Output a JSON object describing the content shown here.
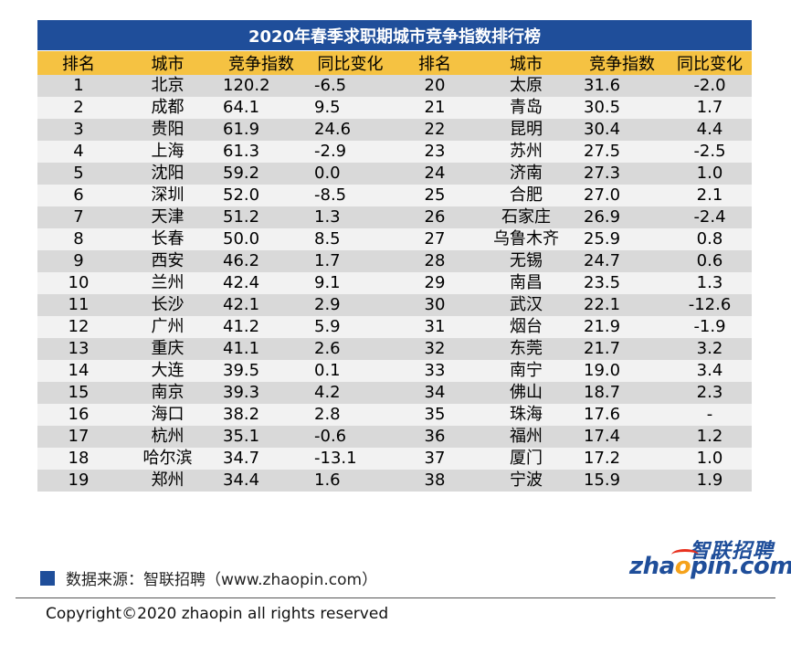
{
  "title": "2020年春季求职期城市竞争指数排行榜",
  "headers": [
    "排名",
    "城市",
    "竞争指数",
    "同比变化",
    "排名",
    "城市",
    "竞争指数",
    "同比变化"
  ],
  "rows": [
    {
      "l": [
        "1",
        "北京",
        "120.2",
        "-6.5"
      ],
      "r": [
        "20",
        "太原",
        "31.6",
        "-2.0"
      ]
    },
    {
      "l": [
        "2",
        "成都",
        "64.1",
        "9.5"
      ],
      "r": [
        "21",
        "青岛",
        "30.5",
        "1.7"
      ]
    },
    {
      "l": [
        "3",
        "贵阳",
        "61.9",
        "24.6"
      ],
      "r": [
        "22",
        "昆明",
        "30.4",
        "4.4"
      ]
    },
    {
      "l": [
        "4",
        "上海",
        "61.3",
        "-2.9"
      ],
      "r": [
        "23",
        "苏州",
        "27.5",
        "-2.5"
      ]
    },
    {
      "l": [
        "5",
        "沈阳",
        "59.2",
        "0.0"
      ],
      "r": [
        "24",
        "济南",
        "27.3",
        "1.0"
      ]
    },
    {
      "l": [
        "6",
        "深圳",
        "52.0",
        "-8.5"
      ],
      "r": [
        "25",
        "合肥",
        "27.0",
        "2.1"
      ]
    },
    {
      "l": [
        "7",
        "天津",
        "51.2",
        "1.3"
      ],
      "r": [
        "26",
        "石家庄",
        "26.9",
        "-2.4"
      ]
    },
    {
      "l": [
        "8",
        "长春",
        "50.0",
        "8.5"
      ],
      "r": [
        "27",
        "乌鲁木齐",
        "25.9",
        "0.8"
      ]
    },
    {
      "l": [
        "9",
        "西安",
        "46.2",
        "1.7"
      ],
      "r": [
        "28",
        "无锡",
        "24.7",
        "0.6"
      ]
    },
    {
      "l": [
        "10",
        "兰州",
        "42.4",
        "9.1"
      ],
      "r": [
        "29",
        "南昌",
        "23.5",
        "1.3"
      ]
    },
    {
      "l": [
        "11",
        "长沙",
        "42.1",
        "2.9"
      ],
      "r": [
        "30",
        "武汉",
        "22.1",
        "-12.6"
      ]
    },
    {
      "l": [
        "12",
        "广州",
        "41.2",
        "5.9"
      ],
      "r": [
        "31",
        "烟台",
        "21.9",
        "-1.9"
      ]
    },
    {
      "l": [
        "13",
        "重庆",
        "41.1",
        "2.6"
      ],
      "r": [
        "32",
        "东莞",
        "21.7",
        "3.2"
      ]
    },
    {
      "l": [
        "14",
        "大连",
        "39.5",
        "0.1"
      ],
      "r": [
        "33",
        "南宁",
        "19.0",
        "3.4"
      ]
    },
    {
      "l": [
        "15",
        "南京",
        "39.3",
        "4.2"
      ],
      "r": [
        "34",
        "佛山",
        "18.7",
        "2.3"
      ]
    },
    {
      "l": [
        "16",
        "海口",
        "38.2",
        "2.8"
      ],
      "r": [
        "35",
        "珠海",
        "17.6",
        "-"
      ]
    },
    {
      "l": [
        "17",
        "杭州",
        "35.1",
        "-0.6"
      ],
      "r": [
        "36",
        "福州",
        "17.4",
        "1.2"
      ]
    },
    {
      "l": [
        "18",
        "哈尔滨",
        "34.7",
        "-13.1"
      ],
      "r": [
        "37",
        "厦门",
        "17.2",
        "1.0"
      ]
    },
    {
      "l": [
        "19",
        "郑州",
        "34.4",
        "1.6"
      ],
      "r": [
        "38",
        "宁波",
        "15.9",
        "1.9"
      ]
    }
  ],
  "source": "数据来源：智联招聘（www.zhaopin.com）",
  "logo": {
    "cn": "智联招聘",
    "en_pre": "zha",
    "en_o": "o",
    "en_post": "pin.com"
  },
  "copyright": "Copyright©2020 zhaopin all rights reserved",
  "colors": {
    "title_bg": "#1f4e9a",
    "header_bg": "#f5c242",
    "row_odd": "#d9d9d9",
    "row_even": "#f2f2f2"
  }
}
